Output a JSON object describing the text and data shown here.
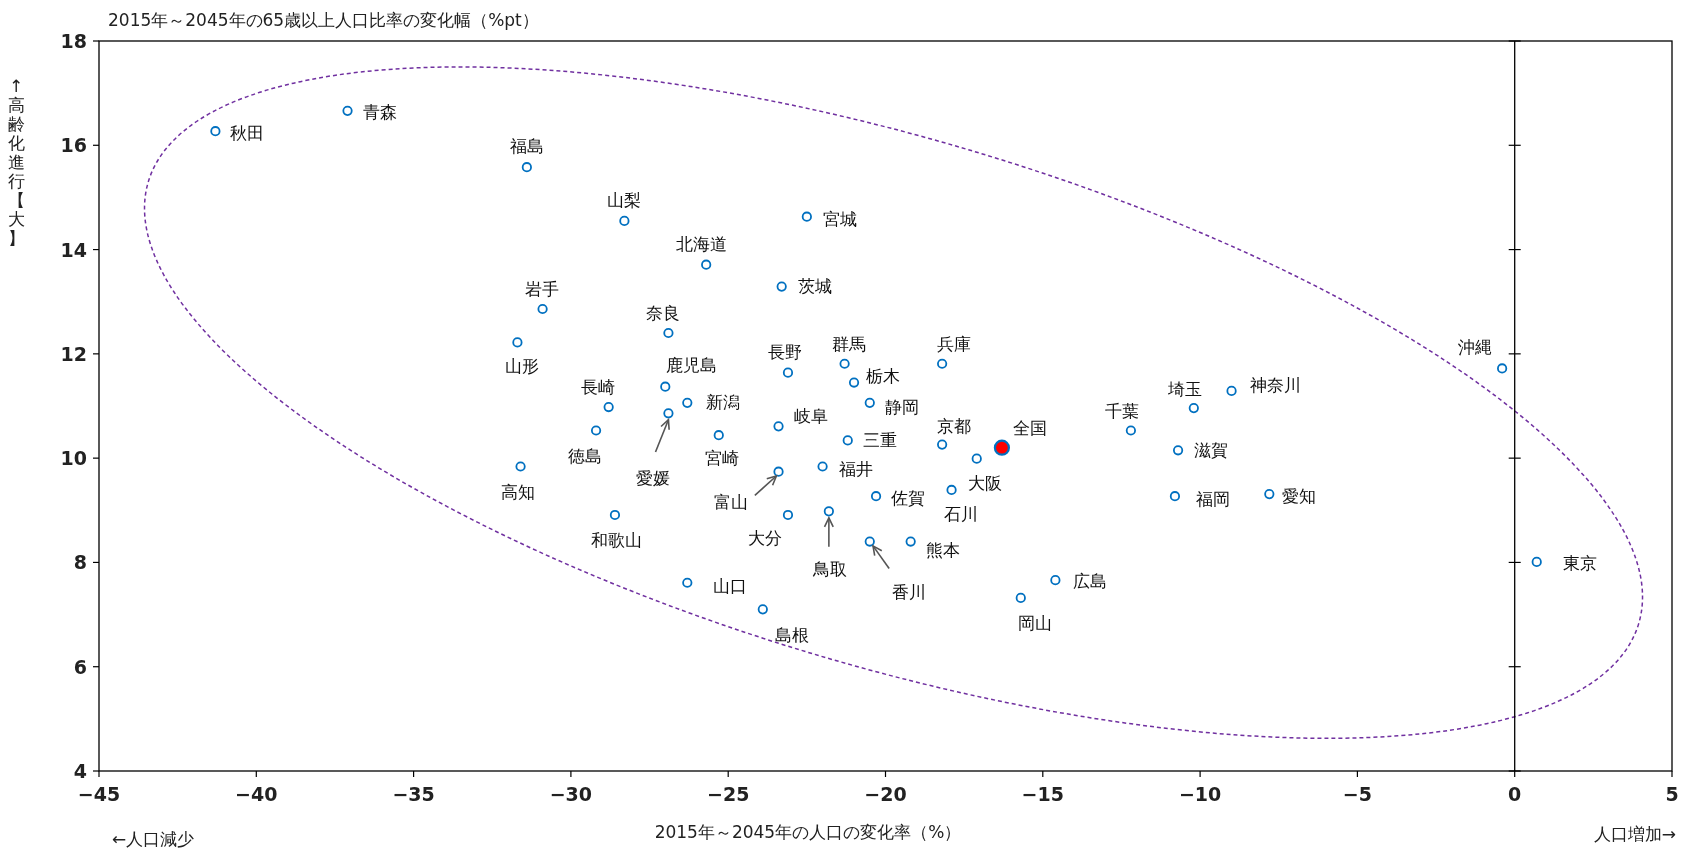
{
  "chart_data": {
    "type": "scatter",
    "xlabel": "2015年～2045年の人口の変化率（%）",
    "ylabel": "2015年～2045年の65歳以上人口比率の変化幅（%pt）",
    "series": [
      {
        "color": "#0070c0",
        "x": [
          -41.3,
          -37.1,
          -31.4,
          -28.3,
          -22.5,
          -25.7,
          -23.3,
          -30.9,
          -26.9,
          -31.7,
          -27.0,
          -23.1,
          -21.3,
          -18.2,
          -21.0,
          -28.8,
          -26.3,
          -20.5,
          -26.9,
          -23.4,
          -29.2,
          -25.3,
          -21.2,
          -18.2,
          -17.1,
          -12.2,
          -10.2,
          -9.0,
          -10.7,
          -0.4,
          -31.6,
          -22.0,
          -23.4,
          -20.3,
          -17.9,
          -10.8,
          -7.8,
          -28.6,
          -23.1,
          -21.8,
          -20.5,
          -19.2,
          -26.3,
          -23.9,
          -14.6,
          -15.7,
          0.7
        ],
        "values": [
          16.27,
          16.66,
          15.58,
          14.55,
          14.63,
          13.71,
          13.29,
          12.86,
          12.4,
          12.22,
          11.37,
          11.64,
          11.81,
          11.81,
          11.45,
          10.98,
          11.06,
          11.06,
          10.86,
          10.61,
          10.53,
          10.44,
          10.34,
          10.26,
          9.99,
          10.53,
          10.96,
          11.29,
          10.15,
          11.72,
          9.84,
          9.84,
          9.74,
          9.27,
          9.39,
          9.27,
          9.31,
          8.91,
          8.91,
          8.98,
          8.4,
          8.4,
          7.61,
          7.1,
          7.66,
          7.32,
          8.01
        ]
      },
      {
        "color": "#ff0000",
        "x": [
          -16.3
        ],
        "values": [
          10.2
        ]
      }
    ],
    "annotations": [
      {
        "text": "秋田",
        "x": -41.3,
        "y": 16.27
      },
      {
        "text": "青森",
        "x": -37.1,
        "y": 16.66
      },
      {
        "text": "福島",
        "x": -31.4,
        "y": 15.58
      },
      {
        "text": "山梨",
        "x": -28.3,
        "y": 14.55
      },
      {
        "text": "宮城",
        "x": -22.5,
        "y": 14.63
      },
      {
        "text": "北海道",
        "x": -25.7,
        "y": 13.71
      },
      {
        "text": "茨城",
        "x": -23.3,
        "y": 13.29
      },
      {
        "text": "岩手",
        "x": -30.9,
        "y": 12.86
      },
      {
        "text": "奈良",
        "x": -26.9,
        "y": 12.4
      },
      {
        "text": "山形",
        "x": -31.7,
        "y": 12.22
      },
      {
        "text": "鹿児島",
        "x": -27.0,
        "y": 11.37
      },
      {
        "text": "長野",
        "x": -23.1,
        "y": 11.64
      },
      {
        "text": "群馬",
        "x": -21.3,
        "y": 11.81
      },
      {
        "text": "兵庫",
        "x": -18.2,
        "y": 11.81
      },
      {
        "text": "栃木",
        "x": -21.0,
        "y": 11.45
      },
      {
        "text": "長崎",
        "x": -28.8,
        "y": 10.98
      },
      {
        "text": "新潟",
        "x": -26.3,
        "y": 11.06
      },
      {
        "text": "静岡",
        "x": -20.5,
        "y": 11.06
      },
      {
        "text": "愛媛",
        "x": -26.9,
        "y": 10.86
      },
      {
        "text": "岐阜",
        "x": -23.4,
        "y": 10.61
      },
      {
        "text": "徳島",
        "x": -29.2,
        "y": 10.53
      },
      {
        "text": "宮崎",
        "x": -25.3,
        "y": 10.44
      },
      {
        "text": "三重",
        "x": -21.2,
        "y": 10.34
      },
      {
        "text": "京都",
        "x": -18.2,
        "y": 10.26
      },
      {
        "text": "全国",
        "x": -16.3,
        "y": 10.2
      },
      {
        "text": "大阪",
        "x": -17.1,
        "y": 9.99
      },
      {
        "text": "千葉",
        "x": -12.2,
        "y": 10.53
      },
      {
        "text": "埼玉",
        "x": -10.2,
        "y": 10.96
      },
      {
        "text": "神奈川",
        "x": -9.0,
        "y": 11.29
      },
      {
        "text": "滋賀",
        "x": -10.7,
        "y": 10.15
      },
      {
        "text": "沖縄",
        "x": -0.4,
        "y": 11.72
      },
      {
        "text": "高知",
        "x": -31.6,
        "y": 9.84
      },
      {
        "text": "福井",
        "x": -22.0,
        "y": 9.84
      },
      {
        "text": "富山",
        "x": -23.4,
        "y": 9.74
      },
      {
        "text": "佐賀",
        "x": -20.3,
        "y": 9.27
      },
      {
        "text": "石川",
        "x": -17.9,
        "y": 9.39
      },
      {
        "text": "福岡",
        "x": -10.8,
        "y": 9.27
      },
      {
        "text": "愛知",
        "x": -7.8,
        "y": 9.31
      },
      {
        "text": "和歌山",
        "x": -28.6,
        "y": 8.91
      },
      {
        "text": "大分",
        "x": -23.1,
        "y": 8.91
      },
      {
        "text": "鳥取",
        "x": -21.8,
        "y": 8.98
      },
      {
        "text": "香川",
        "x": -20.5,
        "y": 8.4
      },
      {
        "text": "熊本",
        "x": -19.2,
        "y": 8.4
      },
      {
        "text": "山口",
        "x": -26.3,
        "y": 7.61
      },
      {
        "text": "島根",
        "x": -23.9,
        "y": 7.1
      },
      {
        "text": "広島",
        "x": -14.6,
        "y": 7.66
      },
      {
        "text": "岡山",
        "x": -15.7,
        "y": 7.32
      },
      {
        "text": "東京",
        "x": 0.7,
        "y": 8.01
      },
      "↑高齢化進行【大】",
      "←人口減少",
      "人口増加→"
    ],
    "xlim": [
      -45,
      5
    ],
    "ylim": [
      4,
      18
    ],
    "xticks": [
      -45,
      -40,
      -35,
      -30,
      -25,
      -20,
      -15,
      -10,
      -5,
      0,
      5
    ],
    "yticks": [
      4,
      6,
      8,
      10,
      12,
      14,
      16,
      18
    ],
    "ref_lines": [
      {
        "axis": "x",
        "value": 0,
        "color": "#000000"
      }
    ],
    "marker": "circle"
  }
}
